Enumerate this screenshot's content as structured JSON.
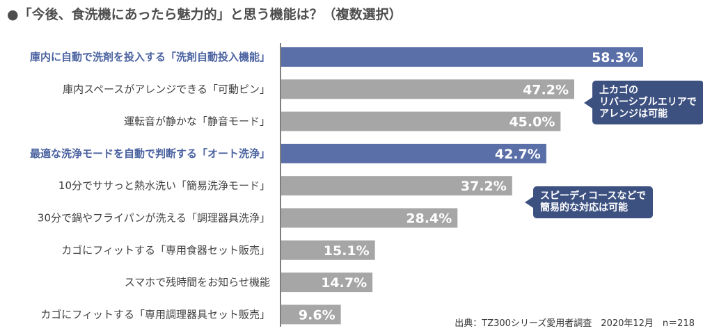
{
  "title": "●「今後、食洗機にあったら魅力的」と思う機能は？（複数選択）",
  "source": "出典：TZ300シリーズ愛用者調査　2020年12月　n＝218",
  "callouts": {
    "pins": [
      "上カゴの",
      "リバーシブルエリアで",
      "アレンジは可能"
    ],
    "quick": [
      "スピーディコースなどで",
      "簡易的な対応は可能"
    ]
  },
  "colors": {
    "highlight": "#5a6fa7",
    "normal": "#a6a6a6",
    "callout": "#3d5181"
  },
  "chart_data": {
    "type": "bar",
    "orientation": "horizontal",
    "categories": [
      "庫内に自動で洗剤を投入する「洗剤自動投入機能」",
      "庫内スペースがアレンジできる「可動ピン」",
      "運転音が静かな「静音モード」",
      "最適な洗浄モードを自動で判断する「オート洗浄」",
      "10分でササっと熱水洗い「簡易洗浄モード」",
      "30分で鍋やフライパンが洗える「調理器具洗浄」",
      "カゴにフィットする「専用食器セット販売」",
      "スマホで残時間をお知らせ機能",
      "カゴにフィットする「専用調理器具セット販売」"
    ],
    "values": [
      58.3,
      47.2,
      45.0,
      42.7,
      37.2,
      28.4,
      15.1,
      14.7,
      9.6
    ],
    "value_labels": [
      "58.3%",
      "47.2%",
      "45.0%",
      "42.7%",
      "37.2%",
      "28.4%",
      "15.1%",
      "14.7%",
      "9.6%"
    ],
    "highlighted": [
      true,
      false,
      false,
      true,
      false,
      false,
      false,
      false,
      false
    ],
    "xlim": [
      0,
      100
    ],
    "grid": false,
    "legend": "none"
  }
}
